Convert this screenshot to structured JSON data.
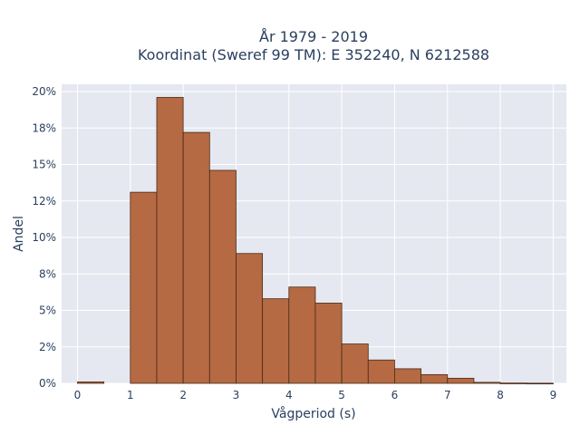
{
  "chart_data": {
    "type": "bar",
    "title_line1": "År 1979 - 2019",
    "title_line2": "Koordinat (Sweref 99 TM): E 352240, N 6212588",
    "xlabel": "Vågperiod (s)",
    "ylabel": "Andel",
    "bin_width": 0.5,
    "bins": [
      {
        "start": 0.0,
        "value": 0.1
      },
      {
        "start": 0.5,
        "value": 0.0
      },
      {
        "start": 1.0,
        "value": 13.1
      },
      {
        "start": 1.5,
        "value": 19.6
      },
      {
        "start": 2.0,
        "value": 17.2
      },
      {
        "start": 2.5,
        "value": 14.6
      },
      {
        "start": 3.0,
        "value": 8.9
      },
      {
        "start": 3.5,
        "value": 5.8
      },
      {
        "start": 4.0,
        "value": 6.6
      },
      {
        "start": 4.5,
        "value": 5.5
      },
      {
        "start": 5.0,
        "value": 2.7
      },
      {
        "start": 5.5,
        "value": 1.6
      },
      {
        "start": 6.0,
        "value": 1.0
      },
      {
        "start": 6.5,
        "value": 0.6
      },
      {
        "start": 7.0,
        "value": 0.35
      },
      {
        "start": 7.5,
        "value": 0.07
      },
      {
        "start": 8.0,
        "value": 0.02
      },
      {
        "start": 8.5,
        "value": 0.01
      }
    ],
    "x_ticks": [
      0,
      1,
      2,
      3,
      4,
      5,
      6,
      7,
      8,
      9
    ],
    "x_tick_labels": [
      "0",
      "1",
      "2",
      "3",
      "4",
      "5",
      "6",
      "7",
      "8",
      "9"
    ],
    "xlim": [
      -0.3,
      9.25
    ],
    "y_ticks": [
      0,
      2.5,
      5,
      7.5,
      10,
      12.5,
      15,
      17.5,
      20
    ],
    "y_tick_labels": [
      "0%",
      "2%",
      "5%",
      "8%",
      "10%",
      "12%",
      "15%",
      "18%",
      "20%"
    ],
    "ylim": [
      0,
      20.5
    ],
    "grid": true,
    "legend": "none",
    "colors": {
      "bar_fill": "#b56a43",
      "bar_edge": "#4a2a18",
      "plot_background": "#e5e8f0",
      "grid": "#ffffff",
      "text": "#2a3f5f"
    }
  }
}
